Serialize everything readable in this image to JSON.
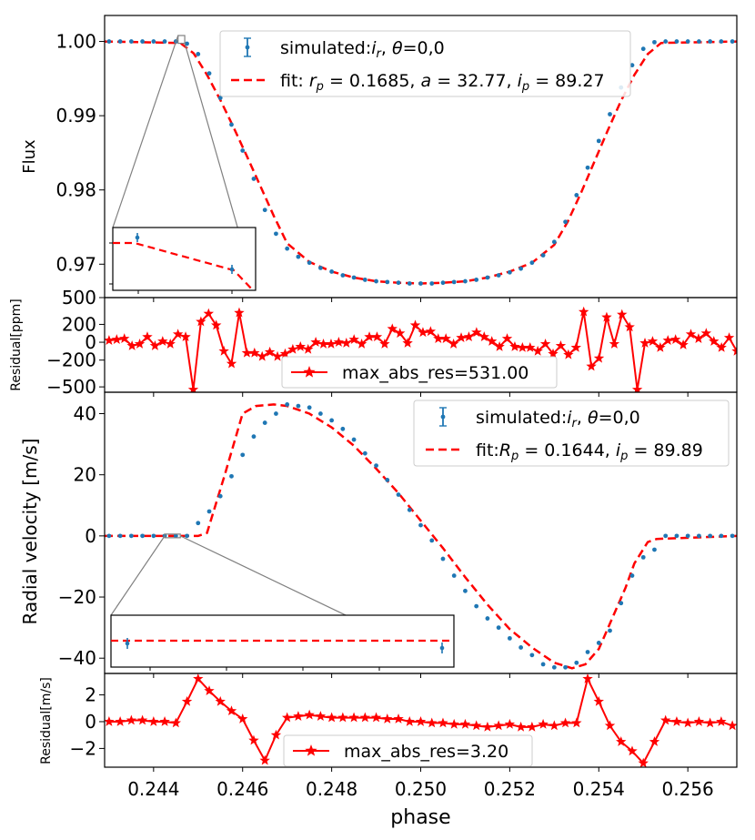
{
  "colors": {
    "sim": "#1f77b4",
    "fit": "#ff0000",
    "res": "#ff0000",
    "frame": "#000000",
    "zoom": "#808080"
  },
  "xaxis": {
    "label": "phase",
    "range": [
      0.2429,
      0.2571
    ],
    "ticks": [
      "0.244",
      "0.246",
      "0.248",
      "0.250",
      "0.252",
      "0.254",
      "0.256"
    ]
  },
  "chart_data": [
    {
      "type": "scatter",
      "id": "flux",
      "ylabel": "Flux",
      "ylim": [
        0.9655,
        1.0035
      ],
      "yticks": [
        {
          "v": 1.0,
          "label": "1.00"
        },
        {
          "v": 0.99,
          "label": "0.99"
        },
        {
          "v": 0.98,
          "label": "0.98"
        },
        {
          "v": 0.97,
          "label": "0.97"
        }
      ],
      "legend": {
        "position": "top-center",
        "sim_label": "simulated:",
        "fit_label": "fit: "
      },
      "x": [
        0.243,
        0.24325,
        0.2435,
        0.24375,
        0.244,
        0.24425,
        0.2445,
        0.24475,
        0.245,
        0.24525,
        0.2455,
        0.24575,
        0.246,
        0.24625,
        0.2465,
        0.24675,
        0.247,
        0.24725,
        0.2475,
        0.24775,
        0.248,
        0.24825,
        0.2485,
        0.24875,
        0.249,
        0.24925,
        0.2495,
        0.24975,
        0.25,
        0.25025,
        0.2505,
        0.25075,
        0.251,
        0.25125,
        0.2515,
        0.25175,
        0.252,
        0.25225,
        0.2525,
        0.25275,
        0.253,
        0.25325,
        0.2535,
        0.25375,
        0.254,
        0.25425,
        0.2545,
        0.25475,
        0.255,
        0.25525,
        0.2555,
        0.25575,
        0.256,
        0.25625,
        0.2565,
        0.25675,
        0.257
      ],
      "flux": [
        1.0,
        1.0,
        1.0,
        1.0,
        1.0,
        1.0,
        1.0,
        0.9997,
        0.9983,
        0.9957,
        0.9924,
        0.9888,
        0.9853,
        0.9815,
        0.9773,
        0.9741,
        0.9721,
        0.971,
        0.9702,
        0.9695,
        0.969,
        0.9685,
        0.9682,
        0.9679,
        0.9677,
        0.9676,
        0.9675,
        0.9674,
        0.9674,
        0.9674,
        0.9675,
        0.9676,
        0.9677,
        0.9679,
        0.9682,
        0.9685,
        0.9689,
        0.9694,
        0.9702,
        0.9712,
        0.973,
        0.9757,
        0.9793,
        0.983,
        0.9866,
        0.9902,
        0.9938,
        0.9968,
        0.999,
        0.9999,
        1.0,
        1.0,
        1.0,
        1.0,
        1.0,
        1.0,
        1.0
      ],
      "fit_x": [
        0.2429,
        0.2446,
        0.2449,
        0.2452,
        0.2455,
        0.2458,
        0.2461,
        0.2464,
        0.2467,
        0.247,
        0.2475,
        0.248,
        0.2485,
        0.249,
        0.2495,
        0.25,
        0.2505,
        0.251,
        0.2515,
        0.252,
        0.2525,
        0.253,
        0.2533,
        0.2536,
        0.2539,
        0.2542,
        0.2545,
        0.2548,
        0.2551,
        0.2554,
        0.2571
      ],
      "fit_y": [
        1.0,
        0.9998,
        0.9984,
        0.9955,
        0.9921,
        0.9884,
        0.9845,
        0.9805,
        0.9765,
        0.9728,
        0.9703,
        0.969,
        0.9682,
        0.9677,
        0.9675,
        0.9674,
        0.9675,
        0.9677,
        0.9682,
        0.969,
        0.9702,
        0.9726,
        0.9757,
        0.9796,
        0.9838,
        0.988,
        0.992,
        0.9955,
        0.9983,
        0.9998,
        1.0
      ],
      "inset": {
        "xlim": [
          0.2445,
          0.2446
        ],
        "ylim": [
          0.9997,
          1.0001
        ],
        "sim_x": [
          0.24475,
          0.245
        ],
        "sim_y": [
          0.99998,
          0.99978
        ],
        "fit_x": [
          0.2445,
          0.24475,
          0.245,
          0.2452
        ],
        "fit_y": [
          0.99998,
          0.99998,
          0.9998,
          0.9996
        ]
      }
    },
    {
      "type": "line",
      "id": "flux_residual",
      "ylabel": "Residual[ppm]",
      "ylim": [
        -560,
        500
      ],
      "yticks": [
        {
          "v": 500,
          "label": "500"
        },
        {
          "v": 200,
          "label": "200"
        },
        {
          "v": 0,
          "label": "0"
        },
        {
          "v": -200,
          "label": "−200"
        },
        {
          "v": -500,
          "label": "−500"
        }
      ],
      "legend": {
        "position": "lower-center",
        "label": "max_abs_res=531.00"
      },
      "values": [
        20,
        30,
        40,
        -40,
        -20,
        60,
        -40,
        10,
        -20,
        90,
        60,
        -531,
        230,
        320,
        190,
        -100,
        -240,
        330,
        -120,
        -120,
        -160,
        -110,
        -160,
        -130,
        -80,
        -50,
        -80,
        0,
        -20,
        -20,
        0,
        -10,
        30,
        -20,
        60,
        60,
        -20,
        150,
        100,
        -10,
        190,
        110,
        120,
        40,
        40,
        -20,
        50,
        60,
        110,
        60,
        10,
        -50,
        40,
        -50,
        -60,
        -60,
        -100,
        -20,
        -130,
        -40,
        -140,
        -60,
        340,
        -270,
        -180,
        280,
        -20,
        310,
        170,
        -531,
        -10,
        10,
        -60,
        20,
        30,
        -30,
        90,
        40,
        100,
        10,
        -60,
        50,
        -100
      ],
      "x_start": 0.243,
      "x_end": 0.2571
    },
    {
      "type": "scatter",
      "id": "rv",
      "ylabel": "Radial velocity [m/s]",
      "ylim": [
        -45,
        47
      ],
      "yticks": [
        {
          "v": 40,
          "label": "40"
        },
        {
          "v": 20,
          "label": "20"
        },
        {
          "v": 0,
          "label": "0"
        },
        {
          "v": -20,
          "label": "−20"
        },
        {
          "v": -40,
          "label": "−40"
        }
      ],
      "legend": {
        "position": "upper-right",
        "sim_label": "simulated:",
        "fit_label": "fit:"
      },
      "x": [
        0.243,
        0.24325,
        0.2435,
        0.24375,
        0.244,
        0.24425,
        0.2445,
        0.24475,
        0.245,
        0.24525,
        0.2455,
        0.24575,
        0.246,
        0.24625,
        0.2465,
        0.24675,
        0.247,
        0.24725,
        0.2475,
        0.24775,
        0.248,
        0.24825,
        0.2485,
        0.24875,
        0.249,
        0.24925,
        0.2495,
        0.24975,
        0.25,
        0.25025,
        0.2505,
        0.25075,
        0.251,
        0.25125,
        0.2515,
        0.25175,
        0.252,
        0.25225,
        0.2525,
        0.25275,
        0.253,
        0.25325,
        0.2535,
        0.25375,
        0.254,
        0.25425,
        0.2545,
        0.25475,
        0.255,
        0.25525,
        0.2555,
        0.25575,
        0.256,
        0.25625,
        0.2565,
        0.25675,
        0.257
      ],
      "rv": [
        0.0,
        0.0,
        0.0,
        0.0,
        0.0,
        0.0,
        0.0,
        0.0,
        4.2,
        8.0,
        13.0,
        19.5,
        26.5,
        32.5,
        37.0,
        40.0,
        43.0,
        42.5,
        42.0,
        40.0,
        37.8,
        35.0,
        31.5,
        27.0,
        23.0,
        18.3,
        13.5,
        8.5,
        3.5,
        -1.5,
        -7.5,
        -13.0,
        -18.0,
        -23.0,
        -27.0,
        -30.0,
        -33.5,
        -36.5,
        -39.0,
        -42.0,
        -43.0,
        -43.0,
        -41.5,
        -38.0,
        -35.0,
        -31.0,
        -22.0,
        -13.0,
        -7.0,
        -4.5,
        0.0,
        0.0,
        0.0,
        0.0,
        0.0,
        0.0,
        0.0
      ],
      "fit_x": [
        0.2429,
        0.245,
        0.2452,
        0.2456,
        0.246,
        0.2463,
        0.2467,
        0.247,
        0.2475,
        0.248,
        0.2485,
        0.249,
        0.2495,
        0.25,
        0.2505,
        0.251,
        0.2515,
        0.252,
        0.2525,
        0.253,
        0.2534,
        0.2537,
        0.254,
        0.2543,
        0.2546,
        0.2548,
        0.2551,
        0.2553,
        0.2571
      ],
      "fit_y": [
        0.0,
        0.0,
        1.0,
        20.0,
        40.0,
        42.5,
        43.0,
        42.5,
        40.0,
        35.5,
        29.5,
        22.0,
        14.0,
        5.0,
        -4.0,
        -13.5,
        -22.5,
        -30.5,
        -36.5,
        -41.5,
        -43.3,
        -42.0,
        -37.0,
        -27.0,
        -17.0,
        -9.0,
        -2.0,
        -1.0,
        0.0
      ],
      "inset": {
        "xlim": [
          0.2443,
          0.2446
        ],
        "ylim": [
          -0.06,
          0.06
        ],
        "sim_x": [
          0.24435,
          0.24455
        ],
        "sim_y": [
          -0.008,
          -0.018
        ],
        "fit_x": [
          0.2443,
          0.2446
        ],
        "fit_y": [
          0.0,
          0.0
        ]
      }
    },
    {
      "type": "line",
      "id": "rv_residual",
      "ylabel": "Residual[m/s]",
      "ylim": [
        -3.4,
        3.6
      ],
      "yticks": [
        {
          "v": 2,
          "label": "2"
        },
        {
          "v": 0,
          "label": "0"
        },
        {
          "v": -2,
          "label": "−2"
        }
      ],
      "legend": {
        "position": "lower-center",
        "label": "max_abs_res=3.20"
      },
      "x": [
        0.243,
        0.24325,
        0.2435,
        0.24375,
        0.244,
        0.24425,
        0.2445,
        0.24475,
        0.245,
        0.24525,
        0.2455,
        0.24575,
        0.246,
        0.24625,
        0.2465,
        0.24675,
        0.247,
        0.24725,
        0.2475,
        0.24775,
        0.248,
        0.24825,
        0.2485,
        0.24875,
        0.249,
        0.24925,
        0.2495,
        0.24975,
        0.25,
        0.25025,
        0.2505,
        0.25075,
        0.251,
        0.25125,
        0.2515,
        0.25175,
        0.252,
        0.25225,
        0.2525,
        0.25275,
        0.253,
        0.25325,
        0.2535,
        0.25375,
        0.254,
        0.25425,
        0.2545,
        0.25475,
        0.255,
        0.25525,
        0.2555,
        0.25575,
        0.256,
        0.25625,
        0.2565,
        0.25675,
        0.257
      ],
      "values": [
        0.0,
        0.0,
        0.1,
        0.1,
        0.0,
        0.0,
        -0.1,
        1.5,
        3.2,
        2.3,
        1.5,
        0.8,
        0.2,
        -1.4,
        -2.9,
        -1.0,
        0.3,
        0.4,
        0.5,
        0.4,
        0.3,
        0.3,
        0.3,
        0.3,
        0.3,
        0.2,
        0.2,
        0.0,
        0.0,
        -0.1,
        -0.1,
        -0.2,
        -0.2,
        -0.3,
        -0.4,
        -0.3,
        -0.2,
        -0.4,
        -0.4,
        -0.2,
        -0.3,
        -0.1,
        -0.1,
        3.2,
        1.5,
        -0.3,
        -1.5,
        -2.2,
        -3.1,
        -1.5,
        0.1,
        0.0,
        -0.1,
        0.0,
        -0.1,
        0.0,
        -0.3
      ]
    }
  ]
}
